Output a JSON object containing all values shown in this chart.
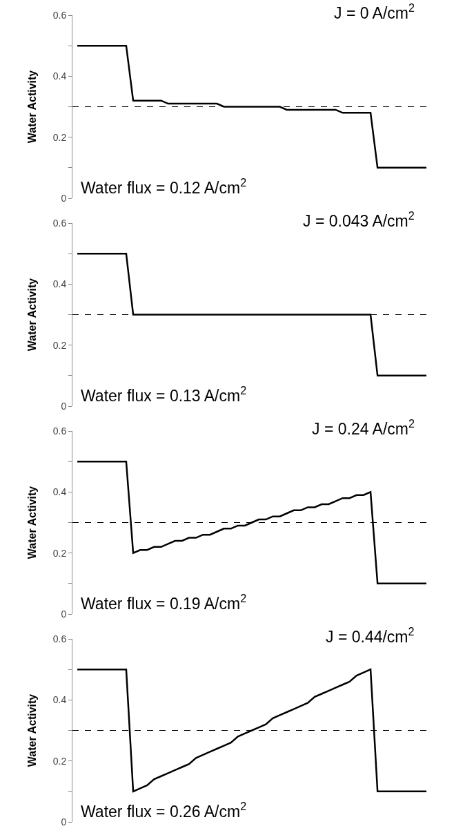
{
  "chart_data": [
    {
      "type": "line",
      "ylabel": "Water Activity",
      "categories": [
        null,
        null,
        null,
        null,
        null,
        null,
        null,
        null,
        null,
        null,
        null,
        null,
        null,
        null,
        null,
        null,
        null,
        null,
        null,
        null,
        null,
        null,
        null,
        null,
        null,
        null,
        null,
        null,
        null,
        null,
        null,
        null,
        null,
        null,
        null,
        null,
        null,
        null,
        null,
        null,
        null,
        null,
        null,
        null,
        null,
        null,
        null,
        null,
        null,
        null,
        null
      ],
      "ylim": [
        0,
        0.6
      ],
      "yticks": [
        0,
        {
          "value": 0.1,
          "label": null
        },
        0.2,
        {
          "value": 0.3,
          "label": null
        },
        0.4,
        {
          "value": 0.5,
          "label": null
        },
        0.6
      ],
      "grid": false,
      "marker": "none",
      "line_style": "solid",
      "series": [
        {
          "color": "#000000",
          "values": [
            0.5,
            0.5,
            0.5,
            0.5,
            0.5,
            0.5,
            0.5,
            0.5,
            0.32,
            0.32,
            0.32,
            0.32,
            0.32,
            0.31,
            0.31,
            0.31,
            0.31,
            0.31,
            0.31,
            0.31,
            0.31,
            0.3,
            0.3,
            0.3,
            0.3,
            0.3,
            0.3,
            0.3,
            0.3,
            0.3,
            0.29,
            0.29,
            0.29,
            0.29,
            0.29,
            0.29,
            0.29,
            0.29,
            0.28,
            0.28,
            0.28,
            0.28,
            0.28,
            0.1,
            0.1,
            0.1,
            0.1,
            0.1,
            0.1,
            0.1,
            0.1
          ]
        }
      ],
      "ref_lines": [
        {
          "axis": "y",
          "value": 0.3,
          "label": null,
          "color": "#000000",
          "line_style": "dashed"
        }
      ],
      "annotations": [
        "J = 0 A/cm$^{2}$",
        "Water flux = 0.12 A/cm$^{2}$"
      ]
    },
    {
      "type": "line",
      "ylabel": "Water Activity",
      "categories": [
        null,
        null,
        null,
        null,
        null,
        null,
        null,
        null,
        null,
        null,
        null,
        null,
        null,
        null,
        null,
        null,
        null,
        null,
        null,
        null,
        null,
        null,
        null,
        null,
        null,
        null,
        null,
        null,
        null,
        null,
        null,
        null,
        null,
        null,
        null,
        null,
        null,
        null,
        null,
        null,
        null,
        null,
        null,
        null,
        null,
        null,
        null,
        null,
        null,
        null,
        null
      ],
      "ylim": [
        0,
        0.6
      ],
      "yticks": [
        0,
        {
          "value": 0.1,
          "label": null
        },
        0.2,
        {
          "value": 0.3,
          "label": null
        },
        0.4,
        {
          "value": 0.5,
          "label": null
        },
        0.6
      ],
      "grid": false,
      "marker": "none",
      "line_style": "solid",
      "series": [
        {
          "color": "#000000",
          "values": [
            0.5,
            0.5,
            0.5,
            0.5,
            0.5,
            0.5,
            0.5,
            0.5,
            0.3,
            0.3,
            0.3,
            0.3,
            0.3,
            0.3,
            0.3,
            0.3,
            0.3,
            0.3,
            0.3,
            0.3,
            0.3,
            0.3,
            0.3,
            0.3,
            0.3,
            0.3,
            0.3,
            0.3,
            0.3,
            0.3,
            0.3,
            0.3,
            0.3,
            0.3,
            0.3,
            0.3,
            0.3,
            0.3,
            0.3,
            0.3,
            0.3,
            0.3,
            0.3,
            0.1,
            0.1,
            0.1,
            0.1,
            0.1,
            0.1,
            0.1,
            0.1
          ]
        }
      ],
      "ref_lines": [
        {
          "axis": "y",
          "value": 0.3,
          "label": null,
          "color": "#000000",
          "line_style": "dashed"
        }
      ],
      "annotations": [
        "J = 0.043 A/cm$^{2}$",
        "Water flux = 0.13 A/cm$^{2}$"
      ]
    },
    {
      "type": "line",
      "ylabel": "Water Activity",
      "categories": [
        null,
        null,
        null,
        null,
        null,
        null,
        null,
        null,
        null,
        null,
        null,
        null,
        null,
        null,
        null,
        null,
        null,
        null,
        null,
        null,
        null,
        null,
        null,
        null,
        null,
        null,
        null,
        null,
        null,
        null,
        null,
        null,
        null,
        null,
        null,
        null,
        null,
        null,
        null,
        null,
        null,
        null,
        null,
        null,
        null,
        null,
        null,
        null,
        null,
        null,
        null
      ],
      "ylim": [
        0,
        0.6
      ],
      "yticks": [
        0,
        {
          "value": 0.1,
          "label": null
        },
        0.2,
        {
          "value": 0.3,
          "label": null
        },
        0.4,
        {
          "value": 0.5,
          "label": null
        },
        0.6
      ],
      "grid": false,
      "marker": "none",
      "line_style": "solid",
      "series": [
        {
          "color": "#000000",
          "values": [
            0.5,
            0.5,
            0.5,
            0.5,
            0.5,
            0.5,
            0.5,
            0.5,
            0.2,
            0.21,
            0.21,
            0.22,
            0.22,
            0.23,
            0.24,
            0.24,
            0.25,
            0.25,
            0.26,
            0.26,
            0.27,
            0.28,
            0.28,
            0.29,
            0.29,
            0.3,
            0.31,
            0.31,
            0.32,
            0.32,
            0.33,
            0.34,
            0.34,
            0.35,
            0.35,
            0.36,
            0.36,
            0.37,
            0.38,
            0.38,
            0.39,
            0.39,
            0.4,
            0.1,
            0.1,
            0.1,
            0.1,
            0.1,
            0.1,
            0.1,
            0.1
          ]
        }
      ],
      "ref_lines": [
        {
          "axis": "y",
          "value": 0.3,
          "label": null,
          "color": "#000000",
          "line_style": "dashed"
        }
      ],
      "annotations": [
        "J = 0.24 A/cm$^{2}$",
        "Water flux = 0.19 A/cm$^{2}$"
      ]
    },
    {
      "type": "line",
      "ylabel": "Water Activity",
      "categories": [
        null,
        null,
        null,
        null,
        null,
        null,
        null,
        null,
        null,
        null,
        null,
        null,
        null,
        null,
        null,
        null,
        null,
        null,
        null,
        null,
        null,
        null,
        null,
        null,
        null,
        null,
        null,
        null,
        null,
        null,
        null,
        null,
        null,
        null,
        null,
        null,
        null,
        null,
        null,
        null,
        null,
        null,
        null,
        null,
        null,
        null,
        null,
        null,
        null,
        null,
        null
      ],
      "ylim": [
        0,
        0.6
      ],
      "yticks": [
        0,
        {
          "value": 0.1,
          "label": null
        },
        0.2,
        {
          "value": 0.3,
          "label": null
        },
        0.4,
        {
          "value": 0.5,
          "label": null
        },
        0.6
      ],
      "grid": false,
      "marker": "none",
      "line_style": "solid",
      "series": [
        {
          "color": "#000000",
          "values": [
            0.5,
            0.5,
            0.5,
            0.5,
            0.5,
            0.5,
            0.5,
            0.5,
            0.1,
            0.11,
            0.12,
            0.14,
            0.15,
            0.16,
            0.17,
            0.18,
            0.19,
            0.21,
            0.22,
            0.23,
            0.24,
            0.25,
            0.26,
            0.28,
            0.29,
            0.3,
            0.31,
            0.32,
            0.34,
            0.35,
            0.36,
            0.37,
            0.38,
            0.39,
            0.41,
            0.42,
            0.43,
            0.44,
            0.45,
            0.46,
            0.48,
            0.49,
            0.5,
            0.1,
            0.1,
            0.1,
            0.1,
            0.1,
            0.1,
            0.1,
            0.1
          ]
        }
      ],
      "ref_lines": [
        {
          "axis": "y",
          "value": 0.3,
          "label": null,
          "color": "#000000",
          "line_style": "dashed"
        }
      ],
      "annotations": [
        "J = 0.44/cm$^{2}$",
        "Water flux = 0.26 A/cm$^{2}$"
      ]
    }
  ]
}
